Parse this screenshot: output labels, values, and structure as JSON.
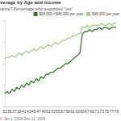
{
  "chart_data": {
    "type": "line",
    "title": "verage by Age and Income",
    "subtitle": "rance? Percentage who responded \"yes\"",
    "source": "ll, Jan 1, 2009-Dec 31, 2009",
    "categories": [
      "33",
      null,
      "35",
      null,
      "37",
      null,
      "39",
      null,
      "41",
      null,
      "43",
      null,
      "45",
      null,
      "47",
      null,
      "49",
      null,
      "51",
      null,
      "53",
      null,
      "55",
      null,
      "57",
      null,
      "59",
      null,
      "61",
      null,
      "63",
      null,
      "65",
      null,
      "67",
      null,
      "69",
      null,
      "71",
      null,
      "73",
      null,
      "75",
      null,
      "77",
      null,
      "79"
    ],
    "series": [
      {
        "name": "$24,000-<$48,000 per year",
        "color": "#2f7d1f",
        "values": [
          66,
          67,
          66,
          68,
          67,
          69,
          68,
          70,
          69,
          71,
          70,
          72,
          71,
          73,
          72,
          74,
          73,
          75,
          75,
          76,
          76,
          77,
          78,
          78,
          79,
          80,
          80,
          81,
          82,
          83,
          84,
          85,
          94,
          95,
          95,
          96,
          95,
          96,
          96,
          97,
          96,
          97,
          97,
          96,
          97,
          97,
          97
        ]
      },
      {
        "name": "$48,000 per year",
        "color": "#a6cf8a",
        "values": [
          82,
          83,
          83,
          84,
          83,
          84,
          85,
          84,
          85,
          86,
          85,
          86,
          87,
          86,
          87,
          88,
          87,
          88,
          89,
          88,
          89,
          90,
          89,
          90,
          91,
          91,
          92,
          92,
          93,
          93,
          94,
          94,
          97,
          97,
          98,
          97,
          98,
          98,
          98,
          98,
          99,
          98,
          98,
          99,
          98,
          99,
          99
        ]
      }
    ],
    "ylim": [
      60,
      100
    ],
    "yticks": [
      60,
      70,
      80,
      90,
      100
    ],
    "grid": false,
    "legend": "top-right",
    "tick_labels": "x"
  }
}
